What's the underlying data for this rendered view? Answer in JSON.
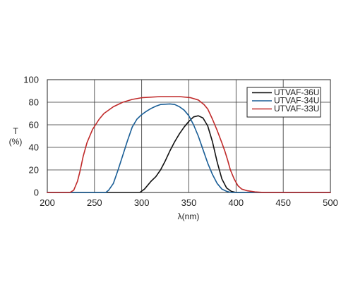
{
  "chart_data": {
    "type": "line",
    "xlabel": "λ(nm)",
    "ylabel": "T\n(%)",
    "xlim": [
      200,
      500
    ],
    "ylim": [
      0,
      100
    ],
    "x_ticks": [
      200,
      250,
      300,
      350,
      400,
      450,
      500
    ],
    "y_ticks": [
      0,
      20,
      40,
      60,
      80,
      100
    ],
    "grid": true,
    "legend_position": "top-right",
    "series": [
      {
        "name": "UTVAF-36U",
        "color": "#111111",
        "points": [
          [
            200,
            0
          ],
          [
            298,
            0
          ],
          [
            303,
            3
          ],
          [
            310,
            10
          ],
          [
            315,
            14
          ],
          [
            320,
            20
          ],
          [
            325,
            28
          ],
          [
            330,
            37
          ],
          [
            335,
            45
          ],
          [
            340,
            52
          ],
          [
            345,
            58
          ],
          [
            350,
            63
          ],
          [
            355,
            67
          ],
          [
            360,
            68
          ],
          [
            365,
            66
          ],
          [
            370,
            59
          ],
          [
            375,
            45
          ],
          [
            380,
            27
          ],
          [
            385,
            12
          ],
          [
            390,
            4
          ],
          [
            395,
            1
          ],
          [
            400,
            0
          ],
          [
            500,
            0
          ]
        ]
      },
      {
        "name": "UTVAF-34U",
        "color": "#1a5e96",
        "points": [
          [
            200,
            0
          ],
          [
            262,
            0
          ],
          [
            265,
            2
          ],
          [
            270,
            8
          ],
          [
            275,
            20
          ],
          [
            280,
            33
          ],
          [
            285,
            46
          ],
          [
            290,
            58
          ],
          [
            295,
            65
          ],
          [
            300,
            69
          ],
          [
            305,
            72
          ],
          [
            310,
            74.5
          ],
          [
            315,
            76.5
          ],
          [
            320,
            78
          ],
          [
            330,
            78.5
          ],
          [
            335,
            78
          ],
          [
            340,
            76
          ],
          [
            345,
            73
          ],
          [
            350,
            68
          ],
          [
            355,
            60
          ],
          [
            360,
            50
          ],
          [
            365,
            38
          ],
          [
            370,
            26
          ],
          [
            375,
            16
          ],
          [
            380,
            8
          ],
          [
            385,
            3
          ],
          [
            390,
            1
          ],
          [
            395,
            0
          ],
          [
            500,
            0
          ]
        ]
      },
      {
        "name": "UTVAF-33U",
        "color": "#c02a2a",
        "points": [
          [
            200,
            0
          ],
          [
            224,
            0
          ],
          [
            228,
            2
          ],
          [
            232,
            10
          ],
          [
            235,
            20
          ],
          [
            238,
            32
          ],
          [
            242,
            44
          ],
          [
            248,
            56
          ],
          [
            255,
            65
          ],
          [
            260,
            70
          ],
          [
            270,
            76
          ],
          [
            280,
            80
          ],
          [
            290,
            82.5
          ],
          [
            300,
            84
          ],
          [
            320,
            85
          ],
          [
            340,
            85
          ],
          [
            352,
            84
          ],
          [
            360,
            82
          ],
          [
            366,
            78
          ],
          [
            370,
            74
          ],
          [
            375,
            65
          ],
          [
            380,
            55
          ],
          [
            385,
            44
          ],
          [
            388,
            37
          ],
          [
            391,
            29
          ],
          [
            394,
            20
          ],
          [
            398,
            12
          ],
          [
            402,
            6
          ],
          [
            406,
            3
          ],
          [
            412,
            1.5
          ],
          [
            420,
            0.5
          ],
          [
            430,
            0
          ],
          [
            500,
            0
          ]
        ]
      }
    ]
  }
}
